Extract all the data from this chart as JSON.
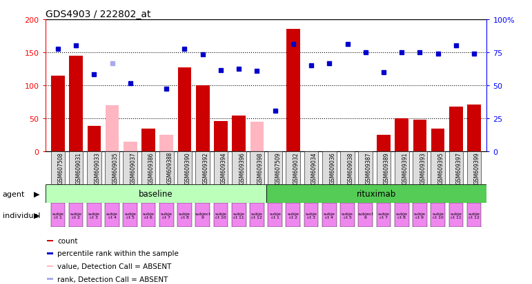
{
  "title": "GDS4903 / 222802_at",
  "samples": [
    "GSM607508",
    "GSM609031",
    "GSM609033",
    "GSM609035",
    "GSM609037",
    "GSM609386",
    "GSM609388",
    "GSM609390",
    "GSM609392",
    "GSM609394",
    "GSM609396",
    "GSM609398",
    "GSM607509",
    "GSM609032",
    "GSM609034",
    "GSM609036",
    "GSM609038",
    "GSM609387",
    "GSM609389",
    "GSM609391",
    "GSM609393",
    "GSM609395",
    "GSM609397",
    "GSM609399"
  ],
  "count_values": [
    115,
    145,
    39,
    null,
    null,
    35,
    null,
    127,
    100,
    46,
    55,
    null,
    null,
    185,
    null,
    null,
    null,
    null,
    25,
    50,
    48,
    35,
    68,
    71
  ],
  "count_absent": [
    null,
    null,
    null,
    70,
    15,
    null,
    25,
    null,
    null,
    null,
    null,
    45,
    null,
    null,
    null,
    null,
    null,
    null,
    null,
    null,
    null,
    null,
    null,
    null
  ],
  "percentile_values": [
    155,
    160,
    117,
    null,
    103,
    null,
    95,
    155,
    147,
    123,
    125,
    122,
    62,
    163,
    130,
    133,
    163,
    150,
    120,
    150,
    150,
    148,
    160,
    148
  ],
  "percentile_absent": [
    null,
    null,
    null,
    133,
    null,
    null,
    null,
    null,
    null,
    null,
    null,
    null,
    null,
    null,
    null,
    null,
    null,
    null,
    null,
    null,
    null,
    null,
    null,
    null
  ],
  "individuals": [
    "subje\nct 1",
    "subje\nct 2",
    "subje\nct 3",
    "subje\nct 4",
    "subje\nct 5",
    "subje\nct 6",
    "subje\nct 7",
    "subje\nct 8",
    "subject\n9",
    "subje\nct 10",
    "subje\nct 11",
    "subje\nct 12",
    "subje\nct 1",
    "subje\nct 2",
    "subje\nct 3",
    "subje\nct 4",
    "subje\nct 5",
    "subject\n6",
    "subje\nct 7",
    "subje\nct 8",
    "subje\nct 9",
    "subje\nct 10",
    "subje\nct 11",
    "subje\nct 12"
  ],
  "bar_color_present": "#cc0000",
  "bar_color_absent": "#ffb6c1",
  "marker_color_present": "#0000cc",
  "marker_color_absent": "#aaaaee",
  "agent_color_baseline": "#bbffbb",
  "agent_color_rituximab": "#55cc55",
  "individual_color": "#ee88ee",
  "xticklabel_bg": "#dddddd",
  "ylim_left": [
    0,
    200
  ],
  "yticks_left": [
    0,
    50,
    100,
    150,
    200
  ],
  "ytick_labels_left": [
    "0",
    "50",
    "100",
    "150",
    "200"
  ],
  "ytick_labels_right": [
    "0",
    "25",
    "50",
    "75",
    "100%"
  ],
  "hlines": [
    50,
    100,
    150
  ]
}
